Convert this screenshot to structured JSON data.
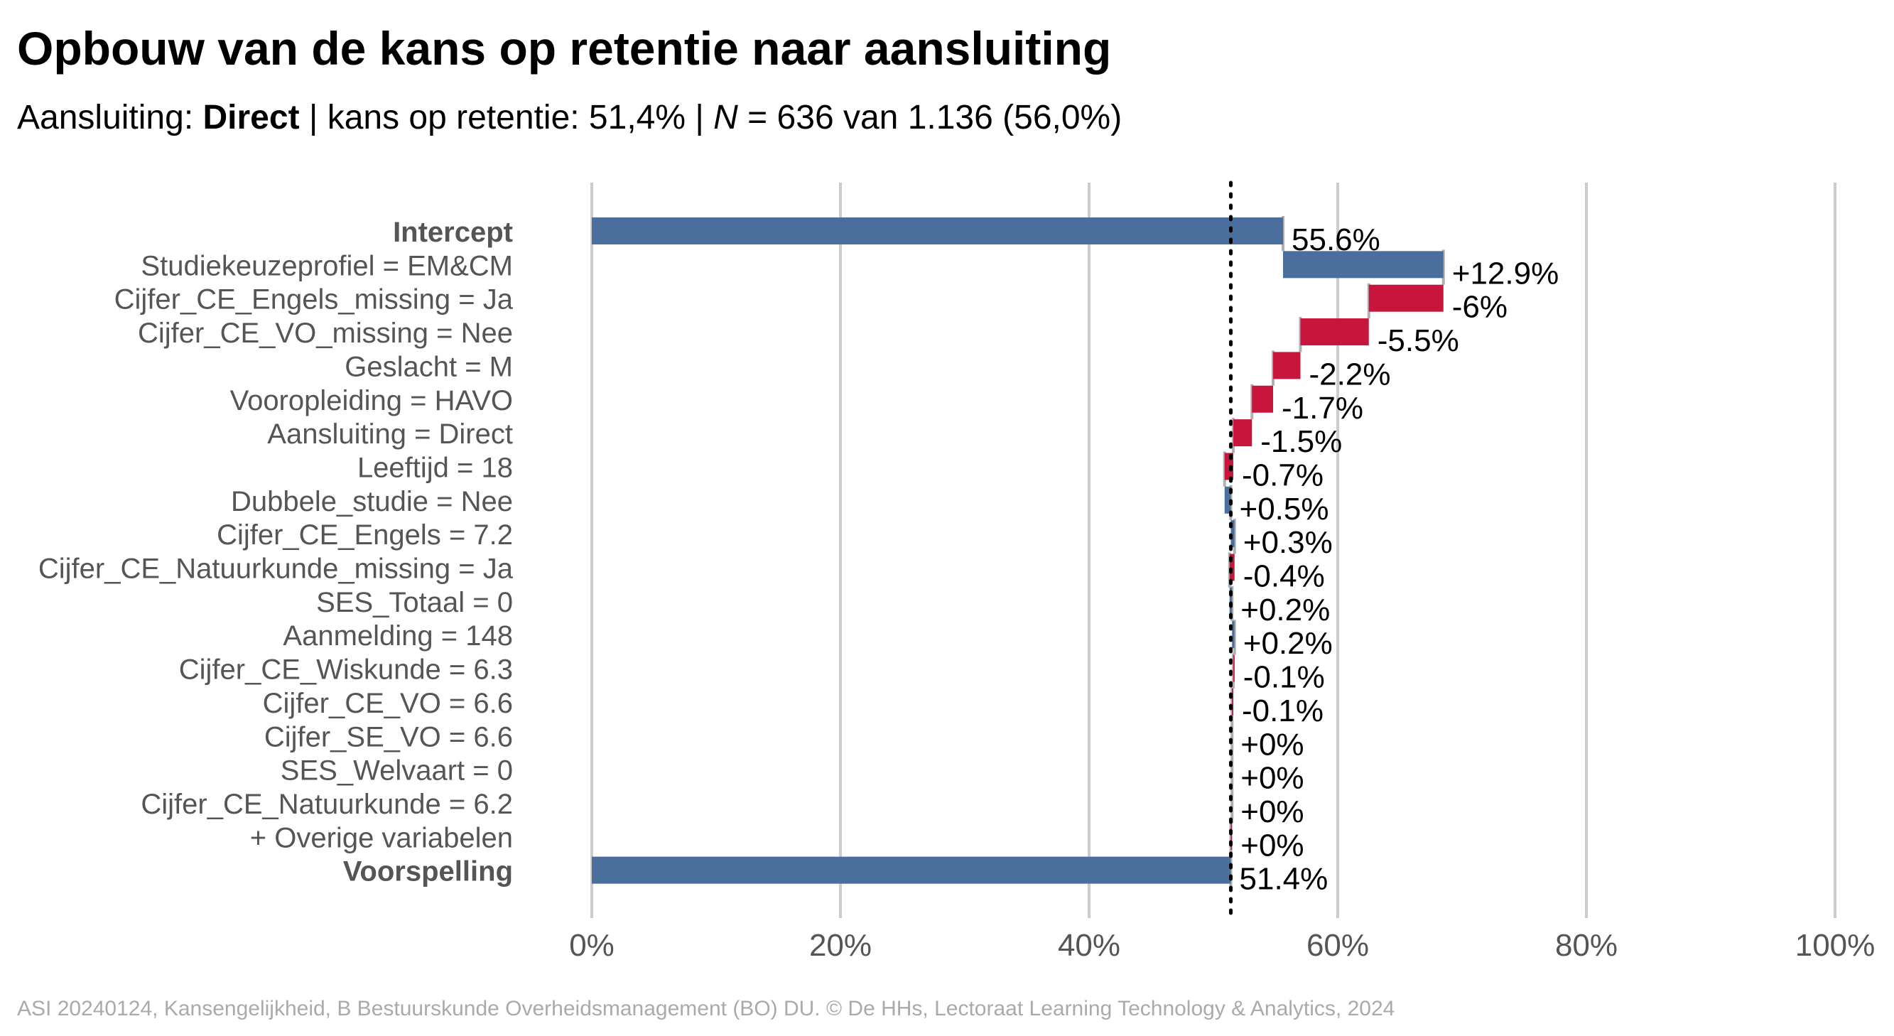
{
  "chart_data": {
    "type": "bar",
    "title": "Opbouw van de kans op retentie naar aansluiting",
    "subtitle": {
      "prefix": "Aansluiting: ",
      "group": "Direct",
      "mid": " | kans op retentie: 51,4% | ",
      "n_symbol": "N",
      "suffix": " = 636 van 1.136 (56,0%)"
    },
    "xlim": [
      0,
      100
    ],
    "x_ticks": [
      0,
      20,
      40,
      60,
      80,
      100
    ],
    "x_tick_labels": [
      "0%",
      "20%",
      "40%",
      "60%",
      "80%",
      "100%"
    ],
    "reference_line": 51.4,
    "grid": true,
    "colors": {
      "positive": "#4a6f9c",
      "negative": "#c8153c",
      "zero": "#bbbbbb",
      "grid": "#cccccc",
      "label": "#555555"
    },
    "rows": [
      {
        "label": "Intercept",
        "bold": true,
        "kind": "total",
        "start": 0,
        "end": 55.6,
        "value_label": "55.6%"
      },
      {
        "label": "Studiekeuzeprofiel = EM&CM",
        "kind": "step",
        "start": 55.6,
        "end": 68.5,
        "value_label": "+12.9%"
      },
      {
        "label": "Cijfer_CE_Engels_missing = Ja",
        "kind": "step",
        "start": 68.5,
        "end": 62.5,
        "value_label": "-6%"
      },
      {
        "label": "Cijfer_CE_VO_missing = Nee",
        "kind": "step",
        "start": 62.5,
        "end": 57.0,
        "value_label": "-5.5%"
      },
      {
        "label": "Geslacht = M",
        "kind": "step",
        "start": 57.0,
        "end": 54.8,
        "value_label": "-2.2%"
      },
      {
        "label": "Vooropleiding = HAVO",
        "kind": "step",
        "start": 54.8,
        "end": 53.1,
        "value_label": "-1.7%"
      },
      {
        "label": "Aansluiting = Direct",
        "kind": "step",
        "start": 53.1,
        "end": 51.6,
        "value_label": "-1.5%"
      },
      {
        "label": "Leeftijd = 18",
        "kind": "step",
        "start": 51.6,
        "end": 50.9,
        "value_label": "-0.7%"
      },
      {
        "label": "Dubbele_studie = Nee",
        "kind": "step",
        "start": 50.9,
        "end": 51.4,
        "value_label": "+0.5%"
      },
      {
        "label": "Cijfer_CE_Engels = 7.2",
        "kind": "step",
        "start": 51.4,
        "end": 51.7,
        "value_label": "+0.3%"
      },
      {
        "label": "Cijfer_CE_Natuurkunde_missing = Ja",
        "kind": "step",
        "start": 51.7,
        "end": 51.3,
        "value_label": "-0.4%"
      },
      {
        "label": "SES_Totaal = 0",
        "kind": "step",
        "start": 51.3,
        "end": 51.5,
        "value_label": "+0.2%"
      },
      {
        "label": "Aanmelding = 148",
        "kind": "step",
        "start": 51.5,
        "end": 51.7,
        "value_label": "+0.2%"
      },
      {
        "label": "Cijfer_CE_Wiskunde = 6.3",
        "kind": "step",
        "start": 51.7,
        "end": 51.6,
        "value_label": "-0.1%"
      },
      {
        "label": "Cijfer_CE_VO = 6.6",
        "kind": "step",
        "start": 51.6,
        "end": 51.5,
        "value_label": "-0.1%"
      },
      {
        "label": "Cijfer_SE_VO = 6.6",
        "kind": "step",
        "start": 51.5,
        "end": 51.5,
        "value_label": "+0%"
      },
      {
        "label": "SES_Welvaart = 0",
        "kind": "step",
        "start": 51.5,
        "end": 51.5,
        "value_label": "+0%"
      },
      {
        "label": "Cijfer_CE_Natuurkunde = 6.2",
        "kind": "step",
        "start": 51.5,
        "end": 51.5,
        "value_label": "+0%"
      },
      {
        "label": "+ Overige variabelen",
        "kind": "step",
        "start": 51.5,
        "end": 51.4,
        "value_label": "+0%"
      },
      {
        "label": "Voorspelling",
        "bold": true,
        "kind": "total",
        "start": 0,
        "end": 51.4,
        "value_label": "51.4%"
      }
    ]
  },
  "caption": "ASI 20240124, Kansengelijkheid, B Bestuurskunde Overheidsmanagement (BO) DU. © De HHs, Lectoraat Learning Technology & Analytics, 2024"
}
